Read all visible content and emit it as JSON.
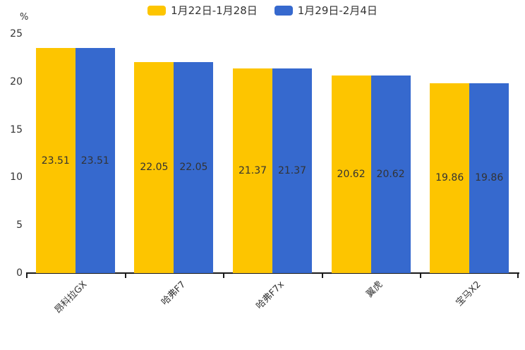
{
  "unit_label": "%",
  "chart_data": {
    "type": "bar",
    "title": "",
    "xlabel": "",
    "ylabel": "%",
    "categories": [
      "昂科拉GX",
      "哈弗F7",
      "哈弗F7x",
      "翼虎",
      "宝马X2"
    ],
    "series": [
      {
        "name": "1月22日-1月28日",
        "color": "#FDC500",
        "values": [
          23.51,
          22.05,
          21.37,
          20.62,
          19.86
        ]
      },
      {
        "name": "1月29日-2月4日",
        "color": "#3669CE",
        "values": [
          23.51,
          22.05,
          21.37,
          20.62,
          19.86
        ]
      }
    ],
    "value_labels": [
      [
        "23.51",
        "22.05",
        "21.37",
        "20.62",
        "19.86"
      ],
      [
        "23.51",
        "22.05",
        "21.37",
        "20.62",
        "19.86"
      ]
    ],
    "ylim": [
      0,
      25
    ],
    "yticks": [
      0,
      5,
      10,
      15,
      20,
      25
    ],
    "grid": false,
    "legend_position": "top",
    "axis_color": "#1a1a1a",
    "label_color": "#333333"
  }
}
